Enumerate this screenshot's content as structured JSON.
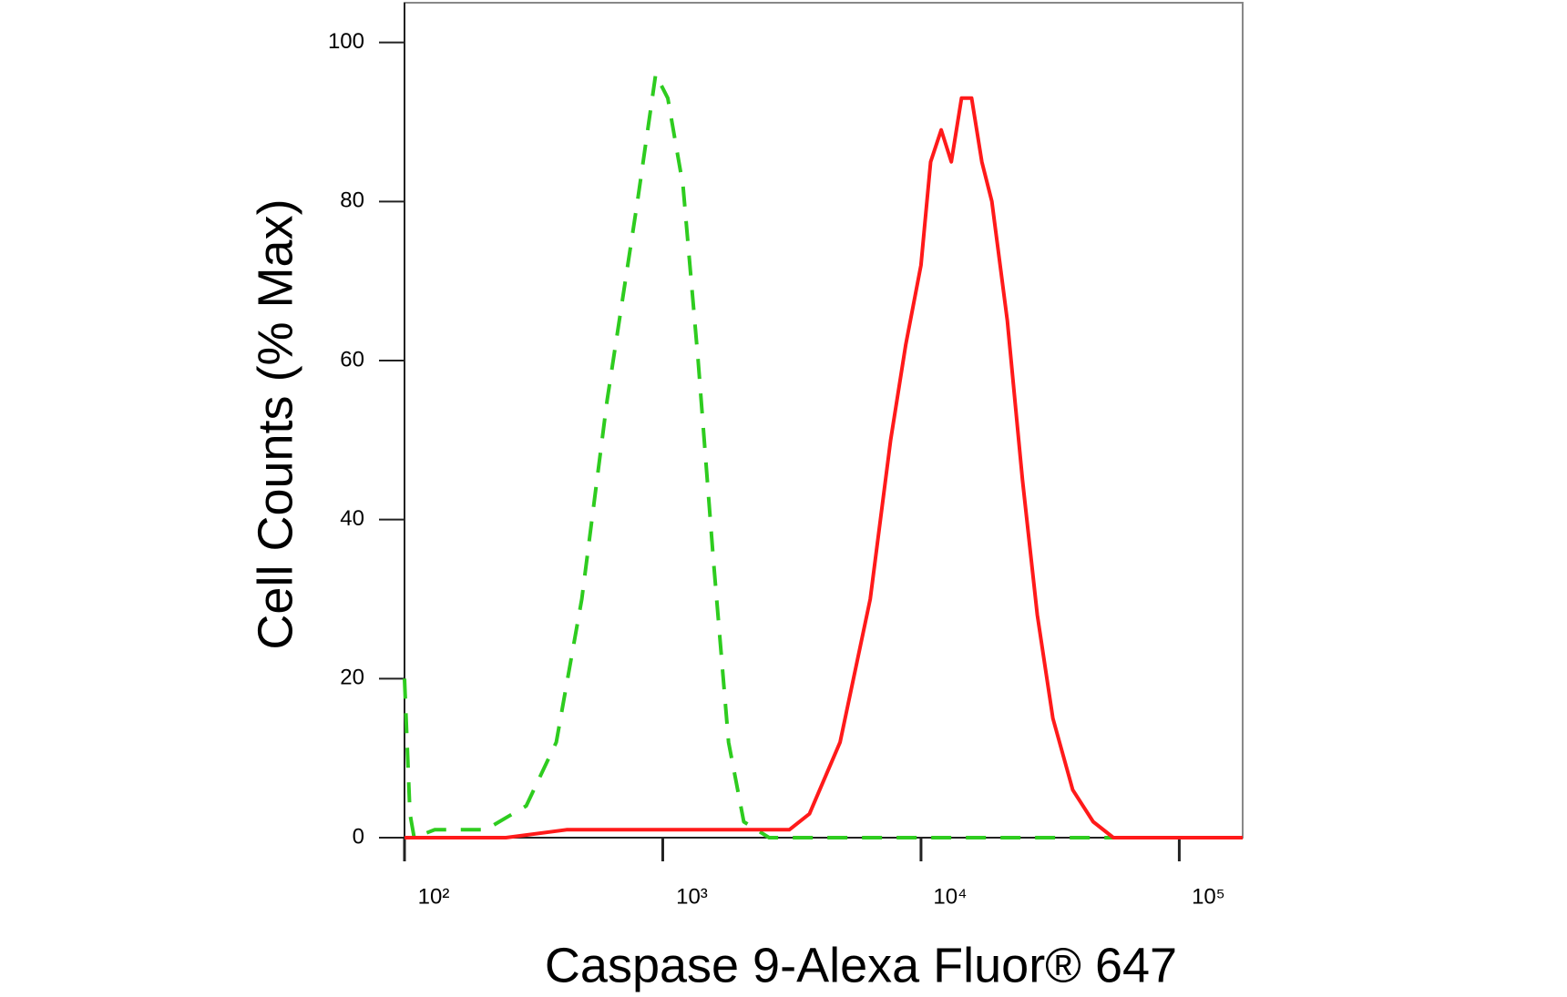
{
  "chart_data": {
    "type": "line",
    "x_label": "Caspase 9-Alexa Fluor® 647",
    "y_label": "Cell Counts (% Max)",
    "xscale": "log",
    "xlim": [
      100,
      176000
    ],
    "ylim": [
      0,
      105
    ],
    "xticks": [
      {
        "value": 100,
        "label": "10²"
      },
      {
        "value": 1000,
        "label": "10³"
      },
      {
        "value": 10000,
        "label": "10⁴"
      },
      {
        "value": 100000,
        "label": "10⁵"
      }
    ],
    "yticks": [
      0,
      20,
      40,
      60,
      80,
      100
    ],
    "grid": false,
    "series": [
      {
        "color": "#2ecc1f",
        "dash": "dashed",
        "x": [
          100,
          105,
          109,
          131,
          206,
          296,
          387,
          486,
          609,
          798,
          939,
          1046,
          1198,
          1371,
          1570,
          1798,
          2060,
          2582,
          176000
        ],
        "values": [
          20,
          3,
          0,
          1,
          1,
          4,
          12,
          30,
          55,
          80,
          96,
          93,
          82,
          60,
          35,
          12,
          2,
          0,
          0
        ]
      },
      {
        "color": "#ff1a1a",
        "dash": "solid",
        "x": [
          100,
          247,
          424,
          609,
          955,
          1500,
          3090,
          3700,
          4860,
          6360,
          7630,
          8730,
          10000,
          10900,
          11970,
          13100,
          14350,
          15700,
          17200,
          18800,
          21600,
          24700,
          28200,
          32400,
          38700,
          46400,
          55600,
          176000
        ],
        "values": [
          0,
          0,
          1,
          1,
          1,
          1,
          1,
          3,
          12,
          30,
          50,
          62,
          72,
          85,
          89,
          85,
          93,
          93,
          85,
          80,
          65,
          45,
          28,
          15,
          6,
          2,
          0,
          0
        ]
      }
    ]
  }
}
